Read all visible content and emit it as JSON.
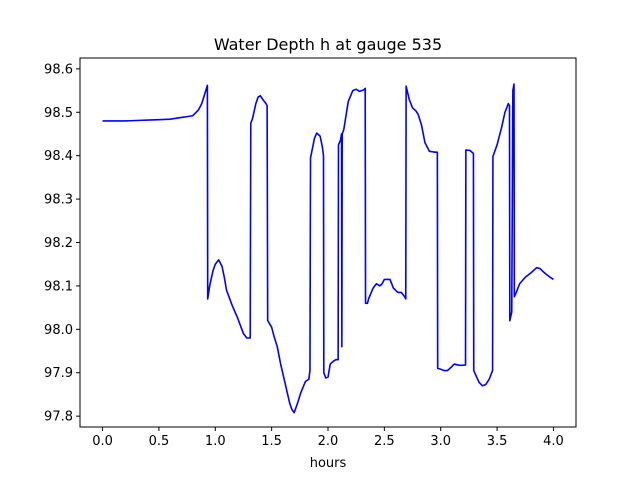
{
  "chart_data": {
    "type": "line",
    "title": "Water Depth h at gauge 535",
    "xlabel": "hours",
    "ylabel": "",
    "xlim": [
      -0.2,
      4.2
    ],
    "ylim": [
      97.775,
      98.625
    ],
    "xticks": [
      0.0,
      0.5,
      1.0,
      1.5,
      2.0,
      2.5,
      3.0,
      3.5,
      4.0
    ],
    "xtick_labels": [
      "0.0",
      "0.5",
      "1.0",
      "1.5",
      "2.0",
      "2.5",
      "3.0",
      "3.5",
      "4.0"
    ],
    "yticks": [
      97.8,
      97.9,
      98.0,
      98.1,
      98.2,
      98.3,
      98.4,
      98.5,
      98.6
    ],
    "ytick_labels": [
      "97.8",
      "97.9",
      "98.0",
      "98.1",
      "98.2",
      "98.3",
      "98.4",
      "98.5",
      "98.6"
    ],
    "grid": false,
    "series": [
      {
        "color": "#0000ff",
        "x": [
          0.0,
          0.1,
          0.2,
          0.3,
          0.4,
          0.5,
          0.6,
          0.65,
          0.7,
          0.75,
          0.8,
          0.85,
          0.88,
          0.91,
          0.93,
          0.933,
          0.95,
          0.98,
          1.0,
          1.03,
          1.06,
          1.08,
          1.1,
          1.15,
          1.2,
          1.25,
          1.28,
          1.3,
          1.31,
          1.315,
          1.33,
          1.36,
          1.38,
          1.4,
          1.42,
          1.45,
          1.46,
          1.465,
          1.5,
          1.52,
          1.55,
          1.58,
          1.62,
          1.66,
          1.68,
          1.7,
          1.73,
          1.76,
          1.8,
          1.83,
          1.84,
          1.845,
          1.88,
          1.9,
          1.93,
          1.95,
          1.96,
          1.963,
          1.98,
          2.0,
          2.02,
          2.05,
          2.07,
          2.09,
          2.093,
          2.11,
          2.12,
          2.123,
          2.126,
          2.14,
          2.18,
          2.22,
          2.25,
          2.28,
          2.3,
          2.32,
          2.33,
          2.333,
          2.35,
          2.36,
          2.4,
          2.43,
          2.46,
          2.48,
          2.5,
          2.55,
          2.58,
          2.62,
          2.65,
          2.68,
          2.69,
          2.693,
          2.72,
          2.75,
          2.78,
          2.8,
          2.83,
          2.86,
          2.9,
          2.95,
          2.97,
          2.973,
          3.0,
          3.03,
          3.06,
          3.09,
          3.12,
          3.15,
          3.18,
          3.22,
          3.223,
          3.26,
          3.29,
          3.293,
          3.31,
          3.34,
          3.37,
          3.4,
          3.43,
          3.46,
          3.463,
          3.5,
          3.54,
          3.57,
          3.6,
          3.61,
          3.613,
          3.63,
          3.64,
          3.65,
          3.653,
          3.67,
          3.7,
          3.75,
          3.8,
          3.85,
          3.88,
          3.9,
          3.93,
          3.97,
          4.0
        ],
        "y": [
          98.48,
          98.48,
          98.48,
          98.481,
          98.482,
          98.483,
          98.484,
          98.486,
          98.488,
          98.49,
          98.492,
          98.505,
          98.52,
          98.545,
          98.562,
          98.07,
          98.1,
          98.135,
          98.15,
          98.16,
          98.145,
          98.12,
          98.09,
          98.055,
          98.025,
          97.99,
          97.98,
          97.98,
          97.98,
          98.475,
          98.485,
          98.52,
          98.535,
          98.538,
          98.53,
          98.52,
          98.515,
          98.02,
          98.005,
          97.985,
          97.96,
          97.92,
          97.875,
          97.83,
          97.815,
          97.808,
          97.83,
          97.855,
          97.88,
          97.885,
          97.905,
          98.395,
          98.44,
          98.452,
          98.445,
          98.42,
          98.4,
          97.9,
          97.888,
          97.89,
          97.92,
          97.927,
          97.93,
          97.93,
          98.425,
          98.435,
          98.45,
          97.96,
          98.45,
          98.46,
          98.525,
          98.55,
          98.553,
          98.548,
          98.55,
          98.552,
          98.555,
          98.06,
          98.06,
          98.07,
          98.095,
          98.105,
          98.1,
          98.105,
          98.115,
          98.115,
          98.095,
          98.085,
          98.085,
          98.075,
          98.07,
          98.56,
          98.53,
          98.51,
          98.503,
          98.495,
          98.47,
          98.43,
          98.41,
          98.408,
          98.408,
          97.91,
          97.908,
          97.905,
          97.905,
          97.912,
          97.92,
          97.918,
          97.917,
          97.918,
          98.413,
          98.412,
          98.405,
          97.905,
          97.895,
          97.878,
          97.87,
          97.873,
          97.885,
          97.905,
          98.398,
          98.425,
          98.465,
          98.5,
          98.52,
          98.515,
          98.02,
          98.04,
          98.55,
          98.565,
          98.075,
          98.085,
          98.105,
          98.12,
          98.13,
          98.142,
          98.14,
          98.135,
          98.128,
          98.12,
          98.115
        ]
      }
    ]
  }
}
